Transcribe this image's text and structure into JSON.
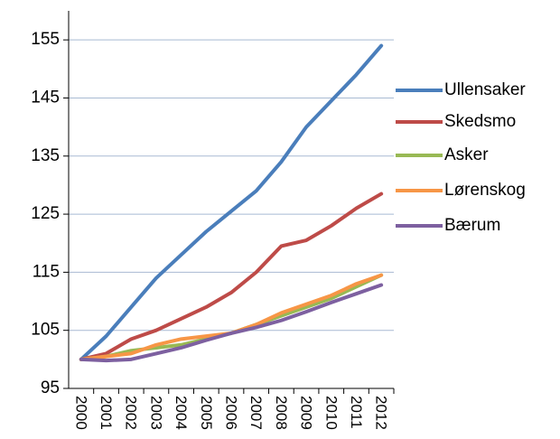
{
  "chart_data": {
    "type": "line",
    "categories": [
      "2000",
      "2001",
      "2002",
      "2003",
      "2004",
      "2005",
      "2006",
      "2007",
      "2008",
      "2009",
      "2010",
      "2011",
      "2012"
    ],
    "series": [
      {
        "name": "Ullensaker",
        "color": "#4a7ebb",
        "values": [
          100,
          104,
          109,
          114,
          118,
          122,
          125.5,
          129,
          134,
          140,
          144.5,
          149,
          154
        ]
      },
      {
        "name": "Skedsmo",
        "color": "#be4b48",
        "values": [
          100,
          101,
          103.5,
          105,
          107,
          109,
          111.5,
          115,
          119.5,
          120.5,
          123,
          126,
          128.5
        ]
      },
      {
        "name": "Asker",
        "color": "#98b954",
        "values": [
          100,
          100.5,
          101.5,
          102,
          102.5,
          103.5,
          104.5,
          106,
          107.5,
          109,
          110.5,
          112.5,
          114.5
        ]
      },
      {
        "name": "Lørenskog",
        "color": "#f79646",
        "values": [
          100,
          100.5,
          101,
          102.5,
          103.5,
          104,
          104.5,
          106,
          108,
          109.5,
          111,
          113,
          114.5
        ]
      },
      {
        "name": "Bærum",
        "color": "#7d60a0",
        "values": [
          100,
          99.8,
          100,
          101,
          102,
          103.3,
          104.5,
          105.5,
          106.7,
          108.2,
          109.8,
          111.3,
          112.8
        ]
      }
    ],
    "ylim": [
      95,
      160
    ],
    "yticks": [
      95,
      105,
      115,
      125,
      135,
      145,
      155
    ],
    "grid": true,
    "legend": "right"
  }
}
